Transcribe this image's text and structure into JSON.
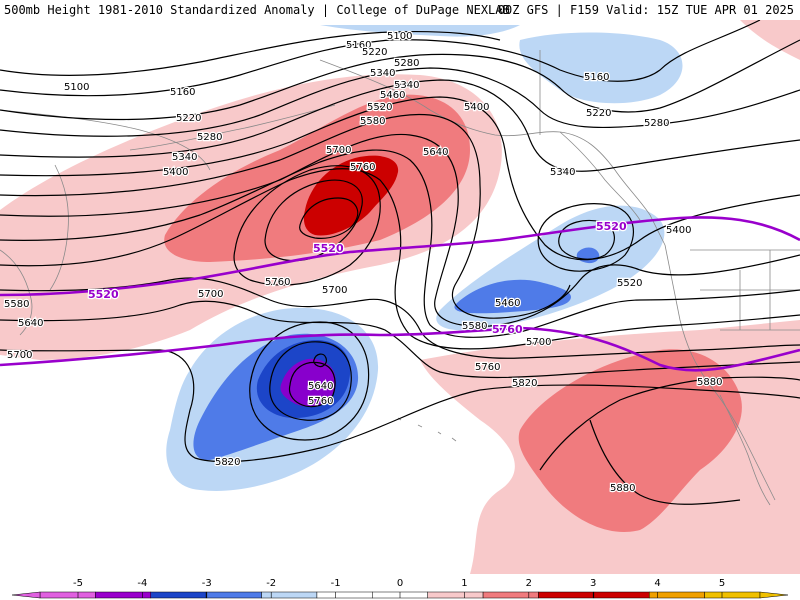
{
  "header": {
    "left_title": "500mb Height 1981-2010 Standardized Anomaly | College of DuPage NEXLAB",
    "right_title": "00Z GFS | F159 Valid: 15Z TUE APR 01 2025"
  },
  "map": {
    "type": "height-anomaly-map",
    "field": "500mb geopotential height (dam)",
    "anomaly_colors": {
      "neg5": "#aa00aa",
      "neg4": "#8800cc",
      "neg3": "#1c45c8",
      "neg2": "#4f7be8",
      "neg1": "#bcd7f5",
      "zero": "#ffffff",
      "pos1": "#f8c9ca",
      "pos2": "#f07b7e",
      "pos3": "#cc0000",
      "pos4": "#cc0000",
      "pos5": "#f0a000"
    },
    "highlight_contour_color": "#9900cc",
    "contour_labels": [
      {
        "id": "l5100a",
        "text": "5100"
      },
      {
        "id": "l5100b",
        "text": "5100"
      },
      {
        "id": "l5160a",
        "text": "5160"
      },
      {
        "id": "l5160b",
        "text": "5160"
      },
      {
        "id": "l5160c",
        "text": "5160"
      },
      {
        "id": "l5220a",
        "text": "5220"
      },
      {
        "id": "l5220b",
        "text": "5220"
      },
      {
        "id": "l5220c",
        "text": "5220"
      },
      {
        "id": "l5280a",
        "text": "5280"
      },
      {
        "id": "l5280b",
        "text": "5280"
      },
      {
        "id": "l5280c",
        "text": "5280"
      },
      {
        "id": "l5340a",
        "text": "5340"
      },
      {
        "id": "l5340b",
        "text": "5340"
      },
      {
        "id": "l5340c",
        "text": "5340"
      },
      {
        "id": "l5340d",
        "text": "5340"
      },
      {
        "id": "l5400a",
        "text": "5400"
      },
      {
        "id": "l5400b",
        "text": "5400"
      },
      {
        "id": "l5400c",
        "text": "5400"
      },
      {
        "id": "l5460a",
        "text": "5460"
      },
      {
        "id": "l5460b",
        "text": "5460"
      },
      {
        "id": "l5520a",
        "text": "5520"
      },
      {
        "id": "l5520b",
        "text": "5520"
      },
      {
        "id": "l5580a",
        "text": "5580"
      },
      {
        "id": "l5580b",
        "text": "5580"
      },
      {
        "id": "l5580c",
        "text": "5580"
      },
      {
        "id": "l5640a",
        "text": "5640"
      },
      {
        "id": "l5640b",
        "text": "5640"
      },
      {
        "id": "l5640c",
        "text": "5640"
      },
      {
        "id": "l5700a",
        "text": "5700"
      },
      {
        "id": "l5700b",
        "text": "5700"
      },
      {
        "id": "l5700c",
        "text": "5700"
      },
      {
        "id": "l5700d",
        "text": "5700"
      },
      {
        "id": "l5700e",
        "text": "5700"
      },
      {
        "id": "l5760a",
        "text": "5760"
      },
      {
        "id": "l5760b",
        "text": "5760"
      },
      {
        "id": "l5760c",
        "text": "5760"
      },
      {
        "id": "l5760d",
        "text": "5760"
      },
      {
        "id": "l5820a",
        "text": "5820"
      },
      {
        "id": "l5820b",
        "text": "5820"
      },
      {
        "id": "l5880a",
        "text": "5880"
      },
      {
        "id": "l5880b",
        "text": "5880"
      }
    ],
    "highlight_labels": [
      {
        "id": "h5520a",
        "text": "5520"
      },
      {
        "id": "h5520b",
        "text": "5520"
      },
      {
        "id": "h5520c",
        "text": "5520"
      },
      {
        "id": "h5760a",
        "text": "5760"
      }
    ]
  },
  "colorbar": {
    "ticks": [
      "-5",
      "-4",
      "-3",
      "-2",
      "-1",
      "0",
      "1",
      "2",
      "3",
      "4",
      "5"
    ],
    "colors": [
      "#e060e0",
      "#9900cc",
      "#1c45c8",
      "#4f7be8",
      "#bcd7f5",
      "#ffffff",
      "#ffffff",
      "#f8c9ca",
      "#f07b7e",
      "#cc0000",
      "#cc0000",
      "#f0a000",
      "#f0c000"
    ]
  }
}
